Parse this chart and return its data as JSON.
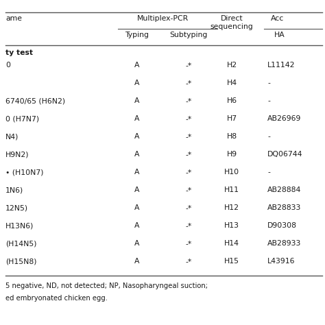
{
  "header_row1_name": "ame",
  "header_row1_mpcr": "Multiplex-PCR",
  "header_row1_direct": "Direct\nsequencing",
  "header_row1_acc": "Acc",
  "header_row2_typing": "Typing",
  "header_row2_subtyping": "Subtyping",
  "header_row2_ha": "HA",
  "section_label": "ty test",
  "rows": [
    [
      "0",
      "A",
      "-*",
      "H2",
      "L11142"
    ],
    [
      "",
      "A",
      "-*",
      "H4",
      "-"
    ],
    [
      "6740/65 (H6N2)",
      "A",
      "-*",
      "H6",
      "-"
    ],
    [
      "0 (H7N7)",
      "A",
      "-*",
      "H7",
      "AB26969"
    ],
    [
      "N4)",
      "A",
      "-*",
      "H8",
      "-"
    ],
    [
      "H9N2)",
      "A",
      "-*",
      "H9",
      "DQ06744"
    ],
    [
      "• (H10N7)",
      "A",
      "-*",
      "H10",
      "-"
    ],
    [
      "1N6)",
      "A",
      "-*",
      "H11",
      "AB28884"
    ],
    [
      "12N5)",
      "A",
      "-*",
      "H12",
      "AB28833"
    ],
    [
      "H13N6)",
      "A",
      "-*",
      "H13",
      "D90308"
    ],
    [
      "(H14N5)",
      "A",
      "-*",
      "H14",
      "AB28933"
    ],
    [
      "(H15N8)",
      "A",
      "-*",
      "H15",
      "L43916"
    ]
  ],
  "footnote1": "5 negative, ND, not detected; NP, Nasopharyngeal suction;",
  "footnote2": "ed embryonated chicken egg.",
  "bg_color": "#ffffff",
  "text_color": "#1a1a1a",
  "line_color": "#555555",
  "fs": 7.8,
  "fs_footnote": 7.2
}
